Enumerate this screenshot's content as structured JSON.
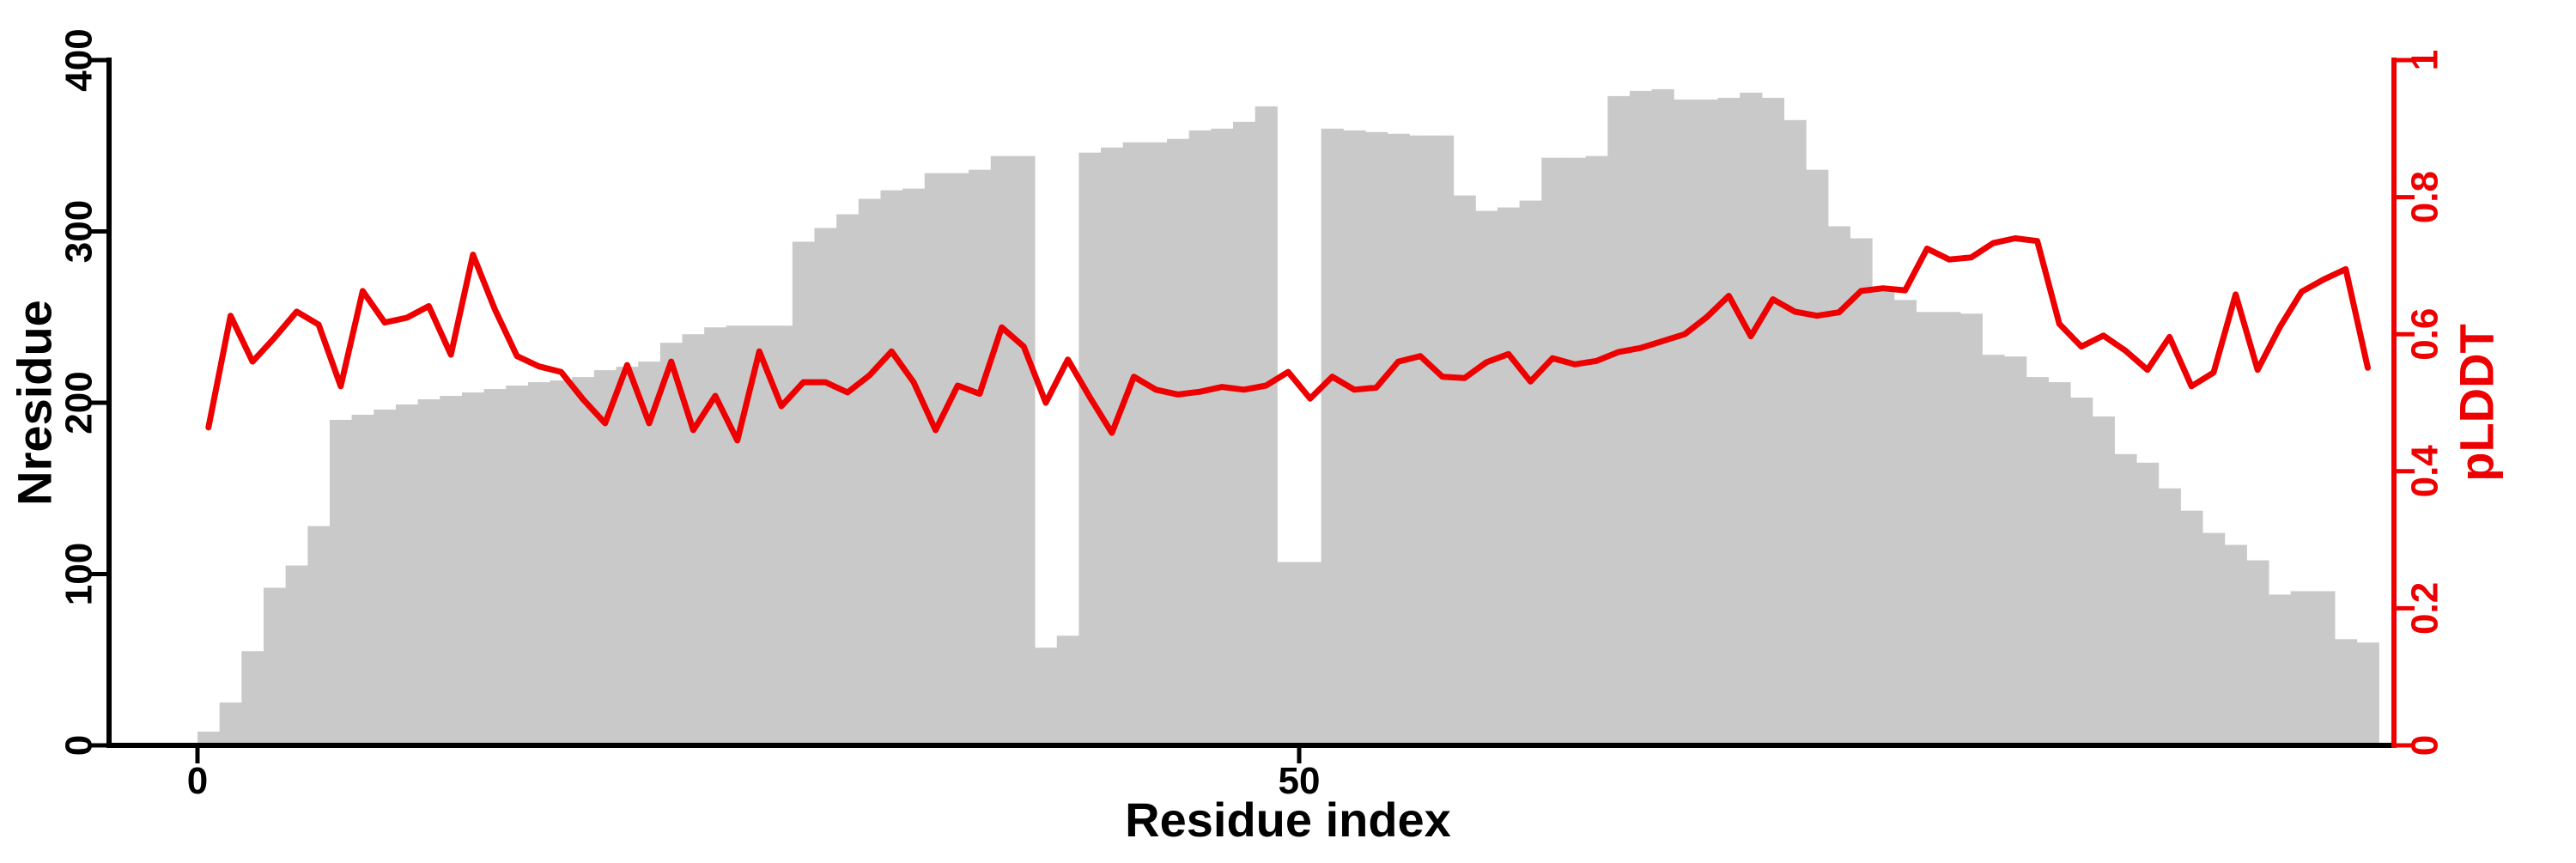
{
  "figure": {
    "background": "#ffffff",
    "bar_color": "#c9c9c9",
    "line_color": "#ee0000",
    "axis_color": "#000000"
  },
  "chart_data": {
    "type": "bar+line",
    "title": "",
    "xlabel": "Residue index",
    "grid": false,
    "legend": "none",
    "n_points": 99,
    "x_first_residue": 1,
    "x_axis": {
      "ticks": [
        0,
        50
      ],
      "tick_labels": [
        "0",
        "50"
      ],
      "xlim": [
        0,
        99
      ]
    },
    "left_axis": {
      "label": "Nresidue",
      "ticks": [
        0,
        100,
        200,
        300,
        400
      ],
      "tick_labels": [
        "0",
        "100",
        "200",
        "300",
        "400"
      ],
      "ylim": [
        0,
        400
      ],
      "color": "#000000"
    },
    "right_axis": {
      "label": "pLDDT",
      "ticks": [
        0,
        0.2,
        0.4,
        0.6,
        0.8,
        1
      ],
      "tick_labels": [
        "0",
        "0.2",
        "0.4",
        "0.6",
        "0.8",
        "1"
      ],
      "ylim": [
        0,
        1
      ],
      "color": "#ee0000"
    },
    "series": [
      {
        "name": "Nresidue",
        "type": "bar",
        "axis": "left",
        "color": "#c9c9c9",
        "values": [
          8,
          25,
          55,
          92,
          105,
          128,
          190,
          193,
          196,
          199,
          202,
          204,
          206,
          208,
          210,
          212,
          213,
          215,
          219,
          221,
          224,
          235,
          240,
          244,
          245,
          245,
          245,
          294,
          302,
          310,
          319,
          324,
          325,
          334,
          334,
          336,
          344,
          344,
          57,
          64,
          346,
          349,
          352,
          352,
          354,
          359,
          360,
          364,
          373,
          107,
          107,
          360,
          359,
          358,
          357,
          356,
          356,
          321,
          312,
          314,
          318,
          343,
          343,
          344,
          379,
          382,
          383,
          377,
          377,
          378,
          381,
          378,
          365,
          336,
          303,
          296,
          265,
          260,
          253,
          253,
          252,
          228,
          227,
          215,
          212,
          203,
          192,
          170,
          165,
          150,
          137,
          124,
          117,
          108,
          88,
          90,
          90,
          62,
          60
        ]
      },
      {
        "name": "pLDDT",
        "type": "line",
        "axis": "right",
        "color": "#ee0000",
        "values": [
          0.464,
          0.627,
          0.56,
          0.595,
          0.633,
          0.614,
          0.524,
          0.663,
          0.617,
          0.624,
          0.641,
          0.57,
          0.716,
          0.636,
          0.568,
          0.553,
          0.545,
          0.505,
          0.47,
          0.555,
          0.47,
          0.56,
          0.46,
          0.51,
          0.445,
          0.575,
          0.495,
          0.53,
          0.53,
          0.515,
          0.54,
          0.575,
          0.53,
          0.46,
          0.525,
          0.513,
          0.61,
          0.582,
          0.5,
          0.563,
          0.508,
          0.456,
          0.538,
          0.519,
          0.512,
          0.516,
          0.523,
          0.519,
          0.525,
          0.545,
          0.506,
          0.538,
          0.519,
          0.522,
          0.56,
          0.568,
          0.538,
          0.536,
          0.559,
          0.571,
          0.531,
          0.565,
          0.556,
          0.561,
          0.574,
          0.58,
          0.59,
          0.6,
          0.625,
          0.656,
          0.597,
          0.651,
          0.633,
          0.627,
          0.632,
          0.663,
          0.667,
          0.664,
          0.725,
          0.709,
          0.712,
          0.733,
          0.74,
          0.736,
          0.615,
          0.582,
          0.598,
          0.576,
          0.548,
          0.596,
          0.524,
          0.544,
          0.658,
          0.548,
          0.61,
          0.662,
          0.68,
          0.695,
          0.551
        ]
      }
    ]
  }
}
